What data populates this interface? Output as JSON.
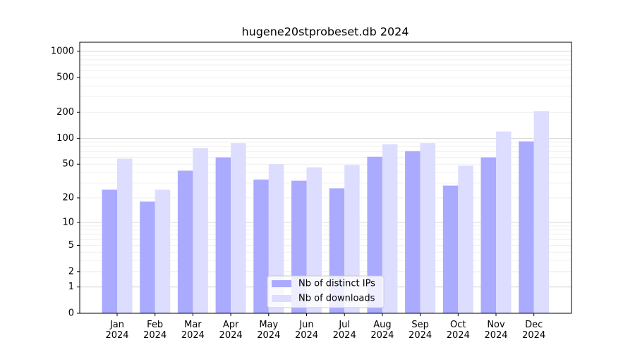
{
  "chart_data": {
    "type": "bar",
    "title": "hugene20stprobeset.db 2024",
    "categories": [
      "Jan\n2024",
      "Feb\n2024",
      "Mar\n2024",
      "Apr\n2024",
      "May\n2024",
      "Jun\n2024",
      "Jul\n2024",
      "Aug\n2024",
      "Sep\n2024",
      "Oct\n2024",
      "Nov\n2024",
      "Dec\n2024"
    ],
    "series": [
      {
        "name": "Nb of distinct IPs",
        "color": "#aaaaff",
        "values": [
          25,
          18,
          42,
          60,
          33,
          32,
          26,
          61,
          71,
          28,
          60,
          92
        ]
      },
      {
        "name": "Nb of downloads",
        "color": "#ddddff",
        "values": [
          58,
          25,
          77,
          88,
          50,
          46,
          49,
          85,
          88,
          48,
          120,
          205
        ]
      }
    ],
    "yscale": "log1p",
    "ylim": [
      0,
      1270
    ],
    "yticks": [
      0,
      1,
      2,
      5,
      10,
      20,
      50,
      100,
      200,
      500,
      1000
    ],
    "grid": true,
    "legend": "lower center"
  }
}
